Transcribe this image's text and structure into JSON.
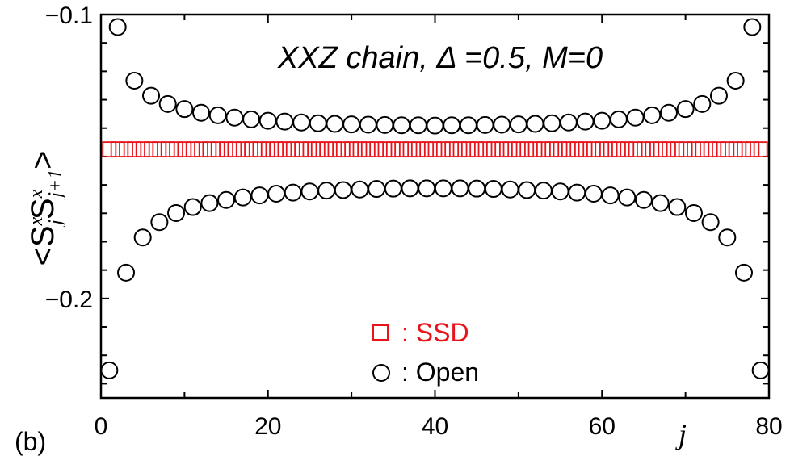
{
  "panel_label": "(b)",
  "chart_data": {
    "type": "scatter",
    "title": "XXZ chain, Δ =0.5, M=0",
    "xlabel": "j",
    "ylabel": {
      "open_bracket": "<",
      "s1": "S",
      "s1_sup": "x",
      "s1_sub": "j",
      "s2": "S",
      "s2_sup": "x",
      "s2_sub": "j+1",
      "close_bracket": ">"
    },
    "xlim": [
      0,
      80
    ],
    "ylim": [
      -0.235,
      -0.1
    ],
    "x_ticks": [
      0,
      20,
      40,
      60,
      80
    ],
    "x_tick_labels": [
      "0",
      "20",
      "40",
      "60",
      "80"
    ],
    "y_ticks": [
      -0.1,
      -0.2
    ],
    "y_tick_labels": [
      "−0.1",
      "−0.2"
    ],
    "legend": {
      "placement": "bottom-center"
    },
    "series": [
      {
        "name": "SSD",
        "legend_label": ": SSD",
        "marker": "square",
        "color": "#e8141b",
        "x": [
          1,
          2,
          3,
          4,
          5,
          6,
          7,
          8,
          9,
          10,
          11,
          12,
          13,
          14,
          15,
          16,
          17,
          18,
          19,
          20,
          21,
          22,
          23,
          24,
          25,
          26,
          27,
          28,
          29,
          30,
          31,
          32,
          33,
          34,
          35,
          36,
          37,
          38,
          39,
          40,
          41,
          42,
          43,
          44,
          45,
          46,
          47,
          48,
          49,
          50,
          51,
          52,
          53,
          54,
          55,
          56,
          57,
          58,
          59,
          60,
          61,
          62,
          63,
          64,
          65,
          66,
          67,
          68,
          69,
          70,
          71,
          72,
          73,
          74,
          75,
          76,
          77,
          78,
          79
        ],
        "y": [
          -0.1475,
          -0.1475,
          -0.1475,
          -0.1475,
          -0.1475,
          -0.1475,
          -0.1475,
          -0.1475,
          -0.1475,
          -0.1475,
          -0.1475,
          -0.1475,
          -0.1475,
          -0.1475,
          -0.1475,
          -0.1475,
          -0.1475,
          -0.1475,
          -0.1475,
          -0.1475,
          -0.1475,
          -0.1475,
          -0.1475,
          -0.1475,
          -0.1475,
          -0.1475,
          -0.1475,
          -0.1475,
          -0.1475,
          -0.1475,
          -0.1475,
          -0.1475,
          -0.1475,
          -0.1475,
          -0.1475,
          -0.1475,
          -0.1475,
          -0.1475,
          -0.1475,
          -0.1475,
          -0.1475,
          -0.1475,
          -0.1475,
          -0.1475,
          -0.1475,
          -0.1475,
          -0.1475,
          -0.1475,
          -0.1475,
          -0.1475,
          -0.1475,
          -0.1475,
          -0.1475,
          -0.1475,
          -0.1475,
          -0.1475,
          -0.1475,
          -0.1475,
          -0.1475,
          -0.1475,
          -0.1475,
          -0.1475,
          -0.1475,
          -0.1475,
          -0.1475,
          -0.1475,
          -0.1475,
          -0.1475,
          -0.1475,
          -0.1475,
          -0.1475,
          -0.1475,
          -0.1475,
          -0.1475,
          -0.1475,
          -0.1475,
          -0.1475,
          -0.1475,
          -0.1475
        ]
      },
      {
        "name": "Open",
        "legend_label": ": Open",
        "marker": "circle",
        "color": "#000000",
        "x": [
          1,
          2,
          3,
          4,
          5,
          6,
          7,
          8,
          9,
          10,
          11,
          12,
          13,
          14,
          15,
          16,
          17,
          18,
          19,
          20,
          21,
          22,
          23,
          24,
          25,
          26,
          27,
          28,
          29,
          30,
          31,
          32,
          33,
          34,
          35,
          36,
          37,
          38,
          39,
          40,
          41,
          42,
          43,
          44,
          45,
          46,
          47,
          48,
          49,
          50,
          51,
          52,
          53,
          54,
          55,
          56,
          57,
          58,
          59,
          60,
          61,
          62,
          63,
          64,
          65,
          66,
          67,
          68,
          69,
          70,
          71,
          72,
          73,
          74,
          75,
          76,
          77,
          78,
          79
        ],
        "y": [
          -0.2253,
          -0.1044,
          -0.1909,
          -0.1233,
          -0.1785,
          -0.1286,
          -0.1731,
          -0.1315,
          -0.1699,
          -0.1333,
          -0.1678,
          -0.1346,
          -0.1664,
          -0.1355,
          -0.1653,
          -0.1363,
          -0.1644,
          -0.1369,
          -0.1637,
          -0.1374,
          -0.1631,
          -0.1377,
          -0.1627,
          -0.138,
          -0.1623,
          -0.1383,
          -0.162,
          -0.1385,
          -0.1618,
          -0.1387,
          -0.1616,
          -0.1388,
          -0.1614,
          -0.1389,
          -0.1613,
          -0.139,
          -0.1612,
          -0.139,
          -0.1612,
          -0.1391,
          -0.1612,
          -0.139,
          -0.1612,
          -0.139,
          -0.1613,
          -0.1389,
          -0.1614,
          -0.1388,
          -0.1616,
          -0.1387,
          -0.1618,
          -0.1385,
          -0.162,
          -0.1383,
          -0.1623,
          -0.138,
          -0.1627,
          -0.1377,
          -0.1631,
          -0.1374,
          -0.1637,
          -0.1369,
          -0.1644,
          -0.1363,
          -0.1653,
          -0.1355,
          -0.1664,
          -0.1346,
          -0.1678,
          -0.1333,
          -0.1699,
          -0.1315,
          -0.1731,
          -0.1286,
          -0.1785,
          -0.1233,
          -0.1909,
          -0.1044,
          -0.2253
        ]
      }
    ]
  }
}
